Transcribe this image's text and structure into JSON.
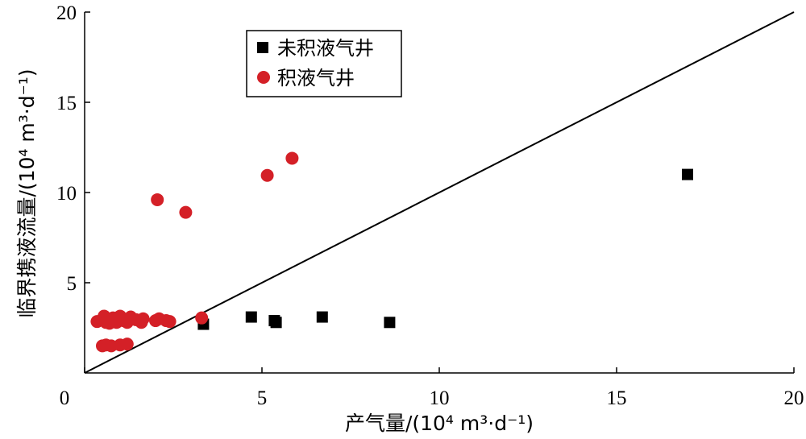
{
  "chart_data": {
    "type": "scatter",
    "xlabel": "产气量/(10⁴ m³·d⁻¹)",
    "ylabel": "临界携液流量/(10⁴ m³·d⁻¹)",
    "xlim": [
      0,
      20
    ],
    "ylim": [
      0,
      20
    ],
    "xticks": [
      0,
      5,
      10,
      15,
      20
    ],
    "yticks": [
      5,
      10,
      15,
      20
    ],
    "grid": false,
    "legend_position": "top-center",
    "reference_line": {
      "x": [
        0,
        20
      ],
      "y": [
        0,
        20
      ],
      "color": "#000000"
    },
    "series": [
      {
        "name": "未积液气井",
        "marker": "square",
        "color": "#000000",
        "points": [
          [
            3.35,
            2.7
          ],
          [
            4.7,
            3.1
          ],
          [
            5.35,
            2.9
          ],
          [
            5.4,
            2.8
          ],
          [
            6.7,
            3.1
          ],
          [
            8.6,
            2.8
          ],
          [
            17.0,
            11.0
          ]
        ]
      },
      {
        "name": "积液气井",
        "marker": "circle",
        "color": "#d42027",
        "points": [
          [
            0.35,
            2.85
          ],
          [
            0.5,
            2.95
          ],
          [
            0.55,
            3.15
          ],
          [
            0.6,
            2.8
          ],
          [
            0.7,
            2.75
          ],
          [
            0.8,
            3.05
          ],
          [
            0.9,
            2.8
          ],
          [
            1.0,
            3.15
          ],
          [
            1.1,
            2.9
          ],
          [
            1.2,
            2.8
          ],
          [
            1.3,
            3.1
          ],
          [
            1.45,
            2.95
          ],
          [
            1.6,
            2.8
          ],
          [
            1.65,
            3.0
          ],
          [
            2.0,
            2.9
          ],
          [
            2.1,
            3.0
          ],
          [
            2.3,
            2.9
          ],
          [
            2.4,
            2.85
          ],
          [
            3.3,
            3.05
          ],
          [
            0.5,
            1.5
          ],
          [
            0.6,
            1.55
          ],
          [
            0.75,
            1.5
          ],
          [
            1.0,
            1.55
          ],
          [
            1.2,
            1.6
          ],
          [
            2.05,
            9.6
          ],
          [
            2.85,
            8.9
          ],
          [
            5.15,
            10.95
          ],
          [
            5.85,
            11.9
          ]
        ]
      }
    ]
  }
}
